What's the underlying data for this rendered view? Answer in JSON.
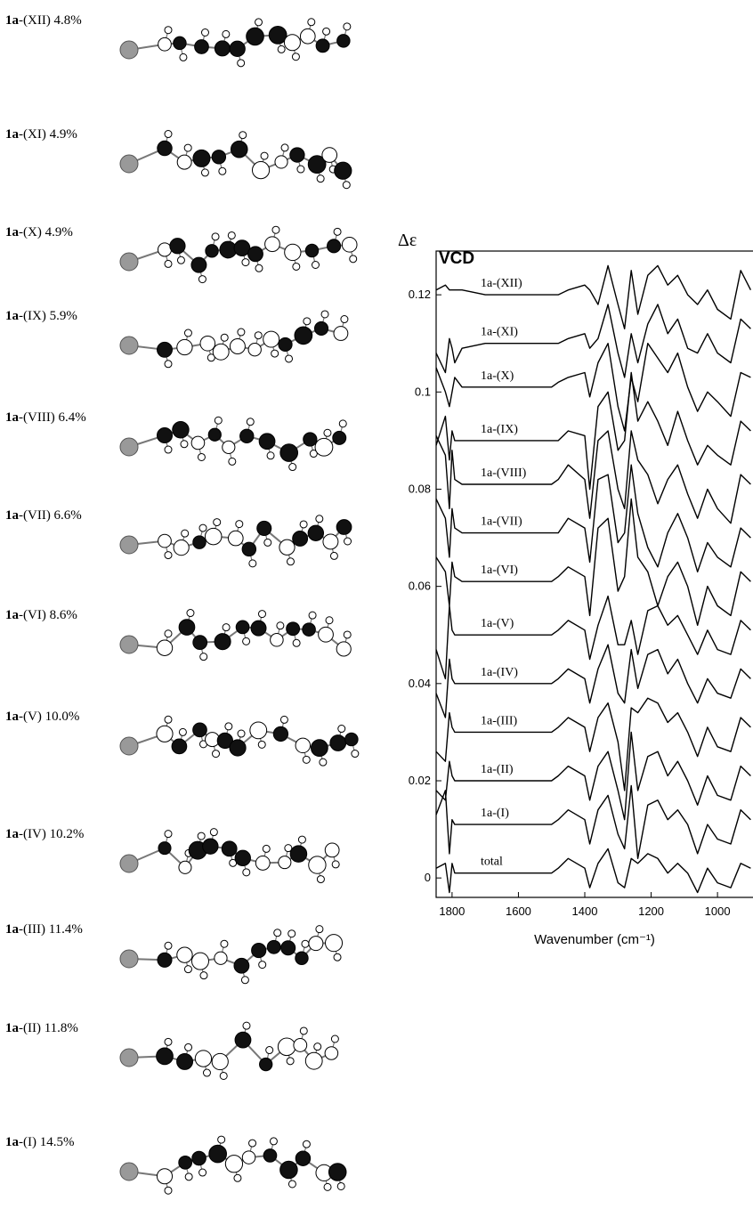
{
  "conformers": [
    {
      "compound": "1a",
      "text": "-(XII) 4.8%"
    },
    {
      "compound": "1a",
      "text": "-(XI) 4.9%"
    },
    {
      "compound": "1a",
      "text": "-(X) 4.9%"
    },
    {
      "compound": "1a",
      "text": "-(IX) 5.9%"
    },
    {
      "compound": "1a",
      "text": "-(VIII) 6.4%"
    },
    {
      "compound": "1a",
      "text": "-(VII) 6.6%"
    },
    {
      "compound": "1a",
      "text": "-(VI) 8.6%"
    },
    {
      "compound": "1a",
      "text": "-(V) 10.0%"
    },
    {
      "compound": "1a",
      "text": "-(IV) 10.2%"
    },
    {
      "compound": "1a",
      "text": "-(III) 11.4%"
    },
    {
      "compound": "1a",
      "text": "-(II) 11.8%"
    },
    {
      "compound": "1a",
      "text": "-(I) 14.5%"
    }
  ],
  "chart_data": {
    "type": "line",
    "annotation": "VCD",
    "ylabel": "Δε",
    "xlabel": "Wavenumber (cm⁻¹)",
    "xlim": [
      1848,
      893
    ],
    "ylim": [
      -0.004,
      0.129
    ],
    "xticks": [
      1800,
      1600,
      1400,
      1200,
      1000
    ],
    "yticks": [
      0,
      0.02,
      0.04,
      0.06,
      0.08,
      0.1,
      0.12
    ],
    "x": [
      1848,
      1820,
      1808,
      1800,
      1792,
      1770,
      1700,
      1600,
      1500,
      1480,
      1450,
      1400,
      1385,
      1360,
      1330,
      1300,
      1280,
      1260,
      1240,
      1210,
      1180,
      1150,
      1120,
      1090,
      1060,
      1030,
      1000,
      960,
      930,
      900
    ],
    "series": [
      {
        "name": "1a-(XII)",
        "color": "#000000",
        "values": [
          0.121,
          0.122,
          0.121,
          0.121,
          0.121,
          0.121,
          0.12,
          0.12,
          0.12,
          0.12,
          0.121,
          0.122,
          0.121,
          0.118,
          0.126,
          0.118,
          0.113,
          0.125,
          0.116,
          0.124,
          0.126,
          0.122,
          0.124,
          0.12,
          0.118,
          0.121,
          0.117,
          0.115,
          0.125,
          0.121
        ]
      },
      {
        "name": "1a-(XI)",
        "color": "#000000",
        "values": [
          0.108,
          0.104,
          0.111,
          0.109,
          0.106,
          0.109,
          0.11,
          0.11,
          0.11,
          0.11,
          0.111,
          0.112,
          0.109,
          0.111,
          0.118,
          0.108,
          0.103,
          0.112,
          0.106,
          0.114,
          0.118,
          0.112,
          0.115,
          0.109,
          0.108,
          0.112,
          0.108,
          0.106,
          0.115,
          0.113
        ]
      },
      {
        "name": "1a-(X)",
        "color": "#000000",
        "values": [
          0.105,
          0.1,
          0.097,
          0.1,
          0.103,
          0.101,
          0.101,
          0.101,
          0.101,
          0.102,
          0.103,
          0.104,
          0.099,
          0.106,
          0.11,
          0.097,
          0.092,
          0.103,
          0.098,
          0.11,
          0.107,
          0.104,
          0.108,
          0.101,
          0.096,
          0.1,
          0.098,
          0.095,
          0.104,
          0.103
        ]
      },
      {
        "name": "1a-(IX)",
        "color": "#000000",
        "values": [
          0.089,
          0.095,
          0.086,
          0.092,
          0.09,
          0.09,
          0.09,
          0.09,
          0.09,
          0.09,
          0.092,
          0.091,
          0.08,
          0.097,
          0.1,
          0.088,
          0.09,
          0.104,
          0.094,
          0.098,
          0.094,
          0.089,
          0.096,
          0.09,
          0.085,
          0.089,
          0.087,
          0.085,
          0.094,
          0.092
        ]
      },
      {
        "name": "1a-(VIII)",
        "color": "#000000",
        "values": [
          0.091,
          0.087,
          0.076,
          0.088,
          0.082,
          0.081,
          0.081,
          0.081,
          0.081,
          0.082,
          0.085,
          0.082,
          0.074,
          0.09,
          0.092,
          0.08,
          0.076,
          0.092,
          0.086,
          0.083,
          0.077,
          0.082,
          0.085,
          0.079,
          0.074,
          0.08,
          0.076,
          0.073,
          0.083,
          0.081
        ]
      },
      {
        "name": "1a-(VII)",
        "color": "#000000",
        "values": [
          0.078,
          0.074,
          0.066,
          0.076,
          0.072,
          0.071,
          0.071,
          0.071,
          0.071,
          0.071,
          0.074,
          0.072,
          0.065,
          0.082,
          0.083,
          0.069,
          0.071,
          0.085,
          0.075,
          0.068,
          0.064,
          0.071,
          0.075,
          0.07,
          0.063,
          0.069,
          0.066,
          0.064,
          0.072,
          0.07
        ]
      },
      {
        "name": "1a-(VI)",
        "color": "#000000",
        "values": [
          0.066,
          0.063,
          0.056,
          0.065,
          0.062,
          0.061,
          0.061,
          0.061,
          0.061,
          0.062,
          0.064,
          0.062,
          0.054,
          0.072,
          0.074,
          0.059,
          0.062,
          0.078,
          0.066,
          0.063,
          0.056,
          0.062,
          0.065,
          0.06,
          0.052,
          0.06,
          0.056,
          0.054,
          0.063,
          0.061
        ]
      },
      {
        "name": "1a-(V)",
        "color": "#000000",
        "values": [
          0.047,
          0.041,
          0.056,
          0.051,
          0.05,
          0.05,
          0.05,
          0.05,
          0.05,
          0.051,
          0.053,
          0.051,
          0.045,
          0.052,
          0.058,
          0.048,
          0.048,
          0.053,
          0.046,
          0.055,
          0.056,
          0.052,
          0.054,
          0.05,
          0.046,
          0.051,
          0.047,
          0.046,
          0.053,
          0.051
        ]
      },
      {
        "name": "1a-(IV)",
        "color": "#000000",
        "values": [
          0.038,
          0.033,
          0.045,
          0.041,
          0.04,
          0.04,
          0.04,
          0.04,
          0.04,
          0.041,
          0.043,
          0.041,
          0.036,
          0.043,
          0.048,
          0.038,
          0.036,
          0.047,
          0.039,
          0.046,
          0.047,
          0.042,
          0.045,
          0.04,
          0.036,
          0.041,
          0.038,
          0.037,
          0.043,
          0.041
        ]
      },
      {
        "name": "1a-(III)",
        "color": "#000000",
        "values": [
          0.026,
          0.024,
          0.034,
          0.031,
          0.03,
          0.03,
          0.03,
          0.03,
          0.03,
          0.031,
          0.033,
          0.031,
          0.026,
          0.033,
          0.036,
          0.028,
          0.018,
          0.035,
          0.034,
          0.037,
          0.036,
          0.032,
          0.034,
          0.03,
          0.025,
          0.031,
          0.027,
          0.026,
          0.033,
          0.031
        ]
      },
      {
        "name": "1a-(II)",
        "color": "#000000",
        "values": [
          0.018,
          0.016,
          0.024,
          0.021,
          0.02,
          0.02,
          0.02,
          0.02,
          0.02,
          0.021,
          0.023,
          0.021,
          0.016,
          0.023,
          0.026,
          0.018,
          0.012,
          0.03,
          0.018,
          0.025,
          0.026,
          0.021,
          0.024,
          0.02,
          0.015,
          0.021,
          0.017,
          0.016,
          0.023,
          0.021
        ]
      },
      {
        "name": "1a-(I)",
        "color": "#000000",
        "values": [
          0.013,
          0.018,
          0.005,
          0.012,
          0.011,
          0.011,
          0.011,
          0.011,
          0.011,
          0.012,
          0.014,
          0.012,
          0.007,
          0.014,
          0.017,
          0.009,
          0.006,
          0.019,
          0.004,
          0.015,
          0.016,
          0.012,
          0.014,
          0.011,
          0.005,
          0.011,
          0.008,
          0.007,
          0.014,
          0.012
        ]
      },
      {
        "name": "total",
        "color": "#000000",
        "values": [
          0.002,
          0.003,
          -0.003,
          0.003,
          0.001,
          0.001,
          0.001,
          0.001,
          0.001,
          0.002,
          0.004,
          0.002,
          -0.002,
          0.003,
          0.006,
          -0.001,
          -0.002,
          0.004,
          0.003,
          0.005,
          0.004,
          0.001,
          0.003,
          0.001,
          -0.003,
          0.002,
          -0.001,
          -0.002,
          0.003,
          0.002
        ]
      }
    ]
  }
}
